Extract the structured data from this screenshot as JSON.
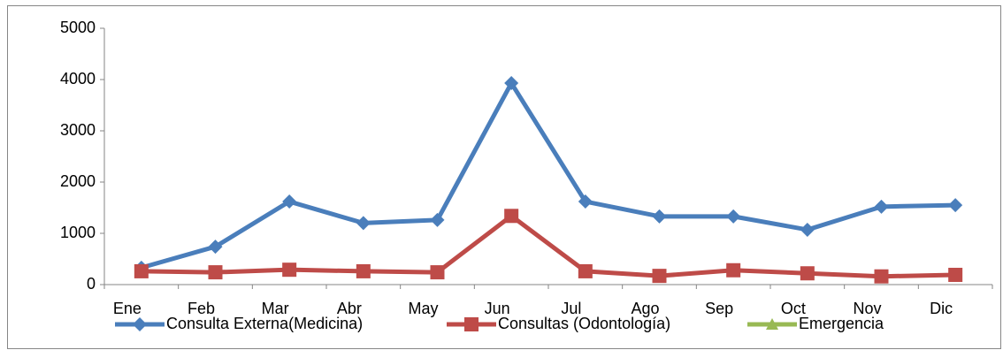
{
  "chart_data": {
    "type": "line",
    "categories": [
      "Ene",
      "Feb",
      "Mar",
      "Abr",
      "May",
      "Jun",
      "Jul",
      "Ago",
      "Sep",
      "Oct",
      "Nov",
      "Dic"
    ],
    "series": [
      {
        "name": "Consulta Externa(Medicina)",
        "color": "#4a7ebb",
        "marker": "diamond",
        "values": [
          330,
          740,
          1620,
          1200,
          1260,
          3930,
          1620,
          1330,
          1330,
          1070,
          1520,
          1550
        ]
      },
      {
        "name": "Consultas (Odontología)",
        "color": "#be4b48",
        "marker": "square",
        "values": [
          260,
          240,
          290,
          260,
          240,
          1340,
          260,
          170,
          280,
          220,
          160,
          190
        ]
      },
      {
        "name": "Emergencia",
        "color": "#98b954",
        "marker": "triangle",
        "values": [
          null,
          null,
          null,
          null,
          null,
          null,
          null,
          null,
          null,
          null,
          null,
          null
        ]
      }
    ],
    "ylim": [
      0,
      5000
    ],
    "yticks": [
      0,
      1000,
      2000,
      3000,
      4000,
      5000
    ],
    "grid": false,
    "legend": "bottom"
  }
}
